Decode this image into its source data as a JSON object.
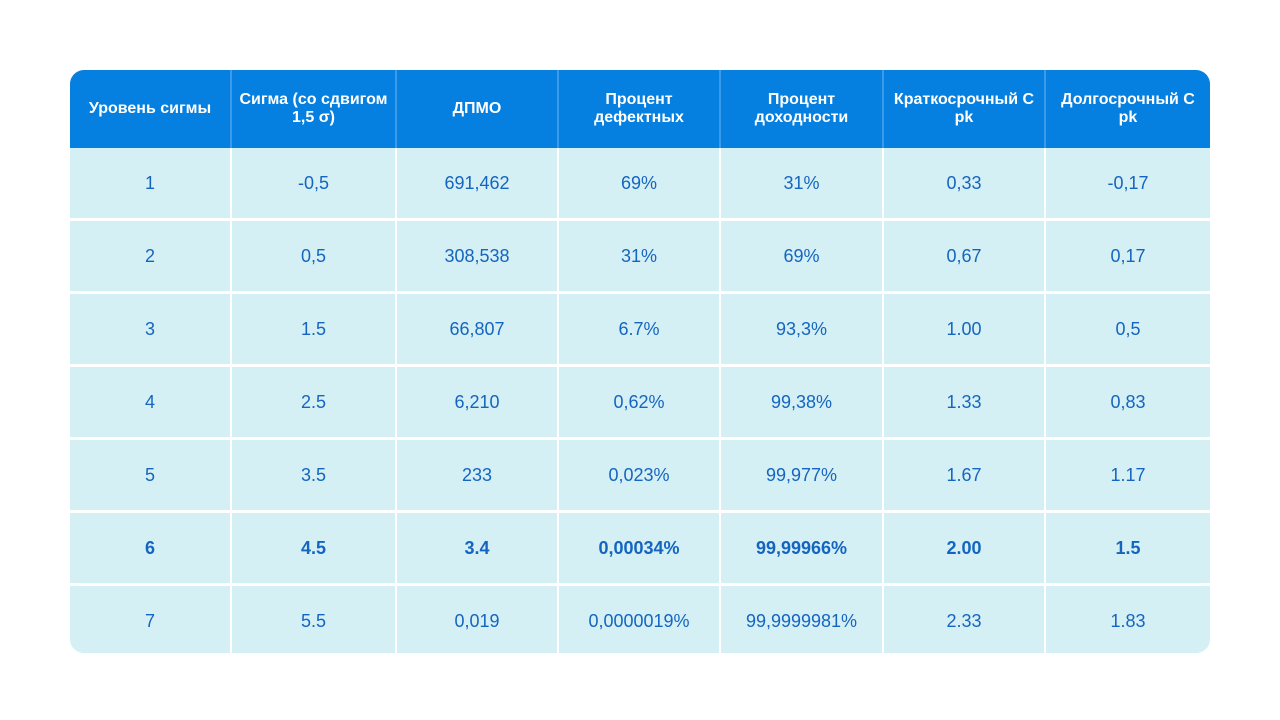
{
  "table": {
    "headers": [
      "Уровень сигмы",
      "Сигма (со сдвигом 1,5 σ)",
      "ДПМО",
      "Процент дефектных",
      "Процент доходности",
      "Краткосрочный С pk",
      "Долгосрочный С pk"
    ],
    "rows": [
      [
        "1",
        "-0,5",
        "691,462",
        "69%",
        "31%",
        "0,33",
        "-0,17"
      ],
      [
        "2",
        "0,5",
        "308,538",
        "31%",
        "69%",
        "0,67",
        "0,17"
      ],
      [
        "3",
        "1.5",
        "66,807",
        "6.7%",
        "93,3%",
        "1.00",
        "0,5"
      ],
      [
        "4",
        "2.5",
        "6,210",
        "0,62%",
        "99,38%",
        "1.33",
        "0,83"
      ],
      [
        "5",
        "3.5",
        "233",
        "0,023%",
        "99,977%",
        "1.67",
        "1.17"
      ],
      [
        "6",
        "4.5",
        "3.4",
        "0,00034%",
        "99,99966%",
        "2.00",
        "1.5"
      ],
      [
        "7",
        "5.5",
        "0,019",
        "0,0000019%",
        "99,9999981%",
        "2.33",
        "1.83"
      ]
    ],
    "highlighted_row": "6"
  }
}
